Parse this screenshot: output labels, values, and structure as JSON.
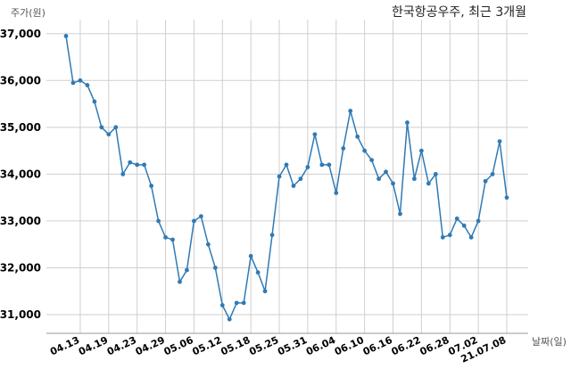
{
  "chart_data": {
    "type": "line",
    "title": "한국항공우주, 최근 3개월",
    "xlabel": "날짜(일)",
    "ylabel": "주가(원)",
    "ylim": [
      30600,
      37300
    ],
    "yticks": [
      31000,
      32000,
      33000,
      34000,
      35000,
      36000,
      37000
    ],
    "ytick_labels": [
      "31,000",
      "32,000",
      "33,000",
      "34,000",
      "35,000",
      "36,000",
      "37,000"
    ],
    "xtick_labels": [
      "04.13",
      "04.19",
      "04.23",
      "04.29",
      "05.06",
      "05.12",
      "05.18",
      "05.25",
      "05.31",
      "06.04",
      "06.10",
      "06.16",
      "06.22",
      "06.28",
      "07.02",
      "21.07.08"
    ],
    "xtick_index": [
      2,
      6,
      10,
      14,
      18,
      22,
      26,
      30,
      34,
      38,
      42,
      46,
      50,
      54,
      58,
      62
    ],
    "grid": true,
    "series": [
      {
        "color": "#2f7ab5",
        "values": [
          36950,
          35950,
          36000,
          35900,
          35550,
          35000,
          34850,
          35000,
          34000,
          34250,
          34200,
          34200,
          33750,
          33000,
          32650,
          32600,
          31700,
          31950,
          33000,
          33100,
          32500,
          32000,
          31200,
          30900,
          31250,
          31250,
          32250,
          31900,
          31500,
          32700,
          33950,
          34200,
          33750,
          33900,
          34150,
          34850,
          34200,
          34200,
          33600,
          34550,
          35350,
          34800,
          34500,
          34300,
          33900,
          34050,
          33800,
          33150,
          35100,
          33900,
          34500,
          33800,
          34000,
          32650,
          32700,
          33050,
          32900,
          32650,
          33000,
          33850,
          34000,
          34700,
          33500
        ]
      }
    ]
  }
}
